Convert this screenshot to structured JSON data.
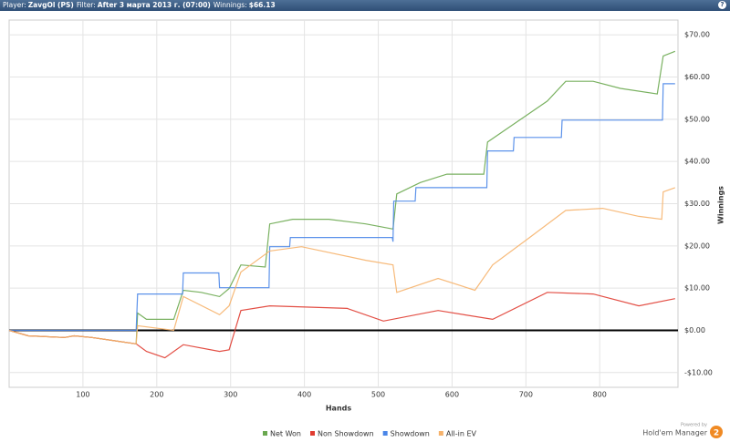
{
  "header": {
    "items": [
      {
        "label": "Player:",
        "value": "ZavgOl (PS)"
      },
      {
        "label": "Filter:",
        "value": "After 3 марта 2013 г. (07:00)"
      },
      {
        "label": "Winnings:",
        "value": "$66.13"
      }
    ]
  },
  "footer": {
    "powered": "Powered by",
    "brand": "Hold'em Manager",
    "badge": "2"
  },
  "chart_data": {
    "type": "line",
    "xlabel": "Hands",
    "ylabel": "Winnings",
    "xlim": [
      0,
      906
    ],
    "ylim": [
      -13.5,
      73.5
    ],
    "xticks": [
      100,
      200,
      300,
      400,
      500,
      600,
      700,
      800
    ],
    "yticks": [
      {
        "value": -10,
        "label": "-$10.00"
      },
      {
        "value": 0,
        "label": "$0.00"
      },
      {
        "value": 10,
        "label": "$10.00"
      },
      {
        "value": 20,
        "label": "$20.00"
      },
      {
        "value": 30,
        "label": "$30.00"
      },
      {
        "value": 40,
        "label": "$40.00"
      },
      {
        "value": 50,
        "label": "$50.00"
      },
      {
        "value": 60,
        "label": "$60.00"
      },
      {
        "value": 70,
        "label": "$70.00"
      }
    ],
    "grid": true,
    "series": [
      {
        "name": "Net Won",
        "color": "#6aa84f",
        "x": [
          0,
          26,
          75,
          88,
          112,
          172,
          174,
          186,
          223,
          236,
          260,
          285,
          298,
          314,
          347,
          353,
          384,
          433,
          483,
          520,
          525,
          557,
          593,
          643,
          648,
          693,
          729,
          754,
          791,
          828,
          878,
          886,
          902
        ],
        "values": [
          0,
          -1.3,
          -1.7,
          -1.3,
          -1.7,
          -3.2,
          4.1,
          2.6,
          2.6,
          9.5,
          9,
          8,
          9.9,
          15.5,
          15,
          25.2,
          26.3,
          26.3,
          25.2,
          24,
          32.3,
          35,
          37,
          37,
          44.6,
          50,
          54.3,
          59,
          59,
          57.3,
          56,
          65,
          66.1
        ]
      },
      {
        "name": "Non Showdown",
        "color": "#e03c31",
        "x": [
          0,
          26,
          75,
          88,
          112,
          172,
          186,
          211,
          236,
          285,
          298,
          314,
          353,
          458,
          507,
          581,
          655,
          729,
          791,
          853,
          902
        ],
        "values": [
          0,
          -1.3,
          -1.7,
          -1.3,
          -1.7,
          -3.2,
          -5,
          -6.5,
          -3.4,
          -5,
          -4.6,
          4.7,
          5.8,
          5.2,
          2.2,
          4.7,
          2.6,
          9,
          8.6,
          5.8,
          7.5
        ]
      },
      {
        "name": "Showdown",
        "color": "#4a86e8",
        "x": [
          0,
          172,
          174,
          235,
          236,
          284,
          285,
          352,
          353,
          380,
          381,
          519,
          520,
          521,
          550,
          551,
          647,
          648,
          683,
          684,
          748,
          749,
          885,
          886,
          902
        ],
        "values": [
          0,
          0,
          8.6,
          8.6,
          13.6,
          13.6,
          10.1,
          10.1,
          19.8,
          19.8,
          22,
          22,
          21,
          30.6,
          30.6,
          33.8,
          33.8,
          42.5,
          42.5,
          45.7,
          45.7,
          49.8,
          49.8,
          58.4,
          58.4
        ]
      },
      {
        "name": "All-in EV",
        "color": "#f6b26b",
        "x": [
          0,
          26,
          75,
          88,
          112,
          172,
          174,
          223,
          236,
          285,
          298,
          314,
          353,
          396,
          483,
          520,
          525,
          581,
          631,
          655,
          705,
          754,
          804,
          853,
          884,
          886,
          902
        ],
        "values": [
          0,
          -1.3,
          -1.7,
          -1.3,
          -1.7,
          -3.2,
          1.1,
          0,
          8,
          3.7,
          5.8,
          13.8,
          18.8,
          19.8,
          16.6,
          15.5,
          9,
          12.3,
          9.5,
          15.5,
          22,
          28.4,
          28.9,
          27,
          26.3,
          32.8,
          33.8
        ]
      }
    ]
  }
}
